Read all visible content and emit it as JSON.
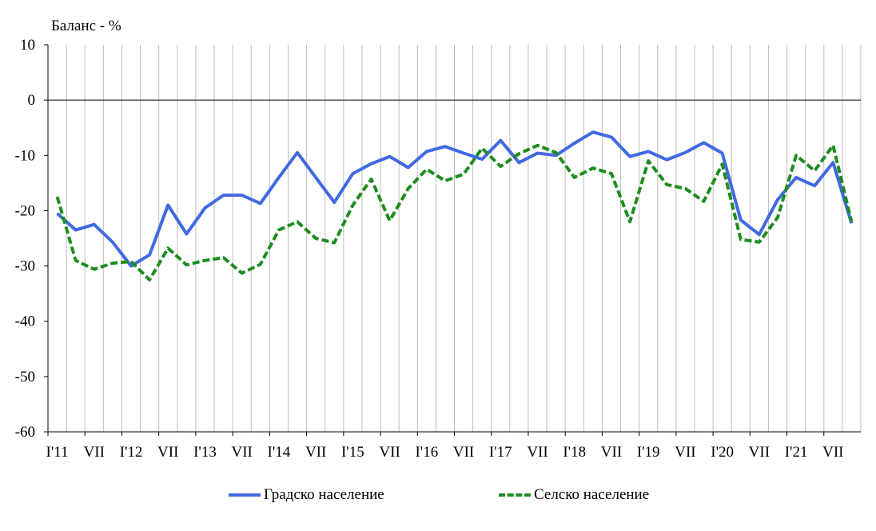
{
  "chart_data": {
    "type": "line",
    "ylabel": "Баланс - %",
    "ylim": [
      -60,
      10
    ],
    "yticks": [
      10,
      0,
      -10,
      -20,
      -30,
      -40,
      -50,
      -60
    ],
    "grid": "vertical",
    "legend_position": "bottom",
    "x_tick_labels": [
      "I'11",
      "VII",
      "I'12",
      "VII",
      "I'13",
      "VII",
      "I'14",
      "VII",
      "I'15",
      "VII",
      "I'16",
      "VII",
      "I'17",
      "VII",
      "I'18",
      "VII",
      "I'19",
      "VII",
      "I'20",
      "VII",
      "I'21",
      "VII"
    ],
    "series": [
      {
        "name": "Градско население",
        "color": "#4169E1",
        "style": "solid",
        "values": [
          -20.5,
          -23.5,
          -22.5,
          -25.7,
          -30,
          -28,
          -19,
          -24.2,
          -19.5,
          -17.2,
          -17.2,
          -18.7,
          -14,
          -9.5,
          -14,
          -18.5,
          -13.3,
          -11.5,
          -10.2,
          -12.2,
          -9.3,
          -8.4,
          -9.6,
          -10.7,
          -7.3,
          -11.3,
          -9.6,
          -10,
          -7.8,
          -5.8,
          -6.7,
          -10.2,
          -9.3,
          -10.8,
          -9.5,
          -7.7,
          -9.6,
          -21.7,
          -24.3,
          -18,
          -14,
          -15.5,
          -11.3,
          -22.3
        ]
      },
      {
        "name": "Селско население",
        "color": "#1E8C1E",
        "style": "dashed",
        "values": [
          -17.5,
          -29,
          -30.6,
          -29.5,
          -29.2,
          -32.5,
          -26.8,
          -29.8,
          -29,
          -28.5,
          -31.3,
          -29.7,
          -23.5,
          -22,
          -25,
          -25.8,
          -19,
          -14.3,
          -21.8,
          -16,
          -12.5,
          -14.6,
          -13.4,
          -8.7,
          -12,
          -9.7,
          -8.2,
          -9.5,
          -14,
          -12.3,
          -13.3,
          -22,
          -11,
          -15.3,
          -16,
          -18.3,
          -11.6,
          -25.2,
          -25.7,
          -21.2,
          -10,
          -12.8,
          -8.2,
          -22
        ]
      }
    ]
  }
}
